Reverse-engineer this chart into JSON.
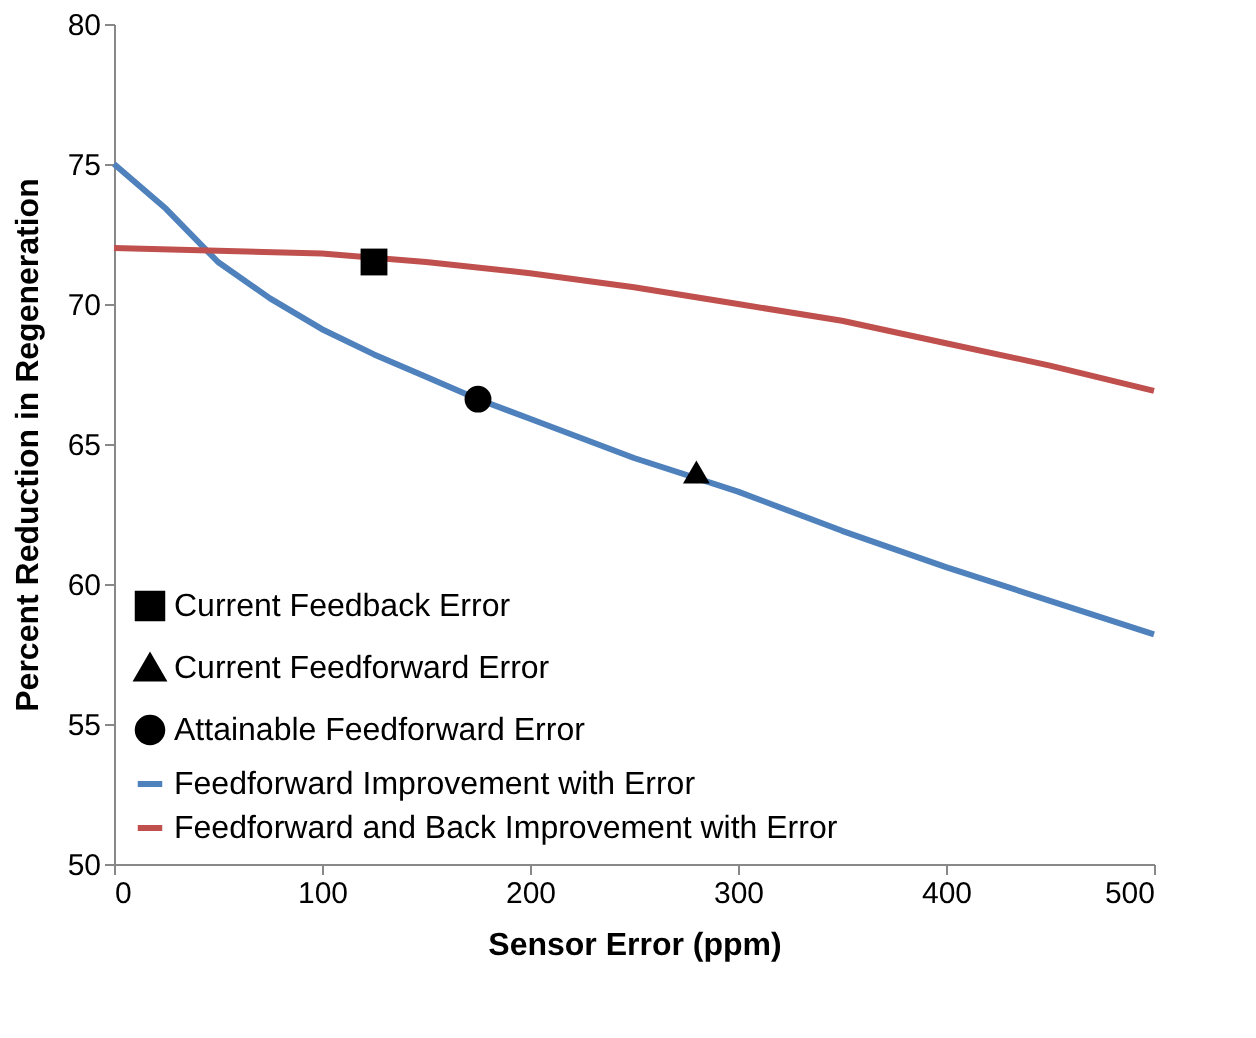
{
  "chart_data": {
    "type": "line",
    "xlabel": "Sensor Error (ppm)",
    "ylabel": "Percent Reduction in Regeneration",
    "xlim": [
      0,
      500
    ],
    "xticks": [
      0,
      100,
      200,
      300,
      400,
      500
    ],
    "ylim": [
      50,
      80
    ],
    "yticks": [
      50,
      55,
      60,
      65,
      70,
      75,
      80
    ],
    "legend": "bottom left",
    "series": [
      {
        "name": "Current Feedback Error",
        "type": "scatter",
        "marker": "square",
        "color": "#000000",
        "x": [
          125
        ],
        "values": [
          71.5
        ]
      },
      {
        "name": "Current Feedforward Error",
        "type": "scatter",
        "marker": "triangle",
        "color": "#000000",
        "x": [
          280
        ],
        "values": [
          64
        ]
      },
      {
        "name": "Attainable Feedforward Error",
        "type": "scatter",
        "marker": "circle",
        "color": "#000000",
        "x": [
          175
        ],
        "values": [
          66.6
        ]
      },
      {
        "name": "Feedforward Improvement with Error",
        "marker": "none",
        "color": "#4f81bd",
        "x": [
          0,
          25,
          50,
          75,
          100,
          125,
          150,
          175,
          200,
          250,
          300,
          350,
          400,
          450,
          500
        ],
        "values": [
          75,
          73.4,
          71.5,
          70.2,
          69.1,
          68.2,
          67.4,
          66.6,
          65.9,
          64.5,
          63.3,
          61.9,
          60.6,
          59.4,
          58.2
        ]
      },
      {
        "name": "Feedforward and Back Improvement with Error",
        "marker": "none",
        "color": "#c0504d",
        "x": [
          0,
          100,
          150,
          200,
          250,
          300,
          350,
          400,
          450,
          500
        ],
        "values": [
          72,
          71.8,
          71.5,
          71.1,
          70.6,
          70.0,
          69.4,
          68.6,
          67.8,
          66.9
        ]
      }
    ]
  }
}
